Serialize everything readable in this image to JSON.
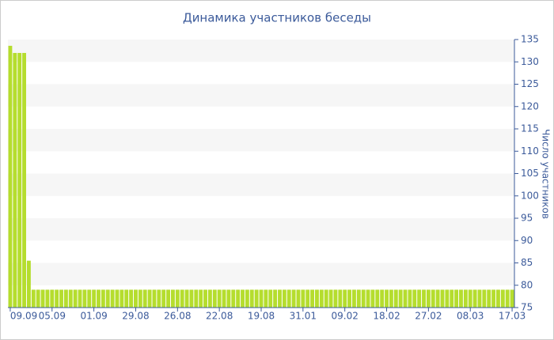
{
  "chart_data": {
    "type": "bar",
    "title": "Динамика участников беседы",
    "y_axis_label": "Число участников",
    "categories": [
      "09.09",
      null,
      null,
      null,
      null,
      null,
      null,
      null,
      null,
      "05.09",
      null,
      null,
      null,
      null,
      null,
      null,
      null,
      null,
      "01.09",
      null,
      null,
      null,
      null,
      null,
      null,
      null,
      null,
      "29.08",
      null,
      null,
      null,
      null,
      null,
      null,
      null,
      null,
      "26.08",
      null,
      null,
      null,
      null,
      null,
      null,
      null,
      null,
      "22.08",
      null,
      null,
      null,
      null,
      null,
      null,
      null,
      null,
      "19.08",
      null,
      null,
      null,
      null,
      null,
      null,
      null,
      null,
      "31.01",
      null,
      null,
      null,
      null,
      null,
      null,
      null,
      null,
      "09.02",
      null,
      null,
      null,
      null,
      null,
      null,
      null,
      null,
      "18.02",
      null,
      null,
      null,
      null,
      null,
      null,
      null,
      null,
      "27.02",
      null,
      null,
      null,
      null,
      null,
      null,
      null,
      null,
      "08.03",
      null,
      null,
      null,
      null,
      null,
      null,
      null,
      null,
      "17.03"
    ],
    "values": [
      133.6,
      132,
      132,
      132,
      85.5,
      79,
      79,
      79,
      79,
      79,
      79,
      79,
      79,
      79,
      79,
      79,
      79,
      79,
      79,
      79,
      79,
      79,
      79,
      79,
      79,
      79,
      79,
      79,
      79,
      79,
      79,
      79,
      79,
      79,
      79,
      79,
      79,
      79,
      79,
      79,
      79,
      79,
      79,
      79,
      79,
      79,
      79,
      79,
      79,
      79,
      79,
      79,
      79,
      79,
      79,
      79,
      79,
      79,
      79,
      79,
      79,
      79,
      79,
      79,
      79,
      79,
      79,
      79,
      79,
      79,
      79,
      79,
      79,
      79,
      79,
      79,
      79,
      79,
      79,
      79,
      79,
      79,
      79,
      79,
      79,
      79,
      79,
      79,
      79,
      79,
      79,
      79,
      79,
      79,
      79,
      79,
      79,
      79,
      79,
      79,
      79,
      79,
      79,
      79,
      79,
      79,
      79,
      79,
      79
    ],
    "color": "#b5dd2e",
    "ylim": [
      75,
      135
    ],
    "yticks": [
      75,
      80,
      85,
      90,
      95,
      100,
      105,
      110,
      115,
      120,
      125,
      130,
      135
    ],
    "y_axis_side": "right",
    "banded_grid": true
  }
}
